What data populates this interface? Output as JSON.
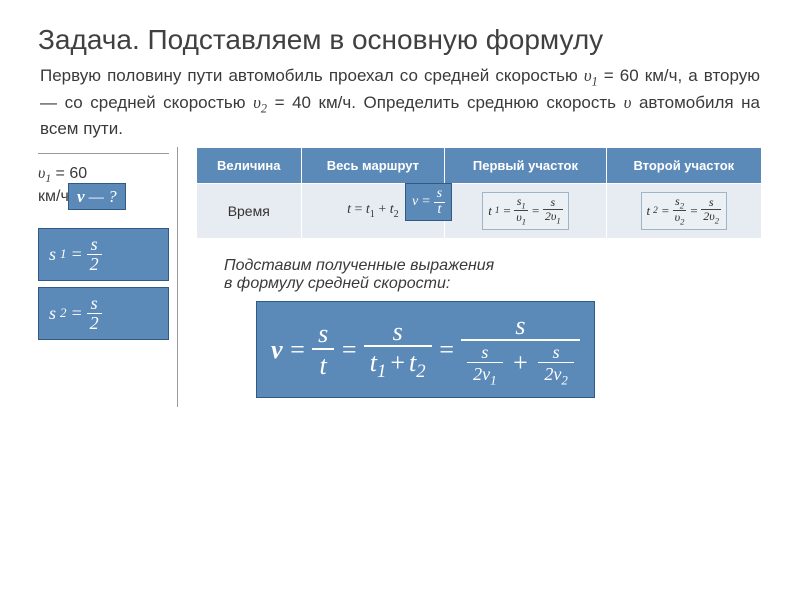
{
  "title": "Задача. Подставляем в основную формулу",
  "problem_html": "Первую половину пути автомобиль проехал со средней скоростью υ₁ = 60 км/ч, а вторую — со средней скоростью υ₂ = 40 км/ч. Определить среднюю скорость υ автомобиля на всем пути.",
  "given": {
    "v1": "υ₁ = 60 км/ч",
    "s1_eq": {
      "lhs": "s₁",
      "rhs_num": "s",
      "rhs_den": "2"
    },
    "s2_eq": {
      "lhs": "s₂",
      "rhs_num": "s",
      "rhs_den": "2"
    }
  },
  "find": "v — ?",
  "formula_small": {
    "lhs": "v",
    "num": "s",
    "den": "t"
  },
  "table": {
    "headers": [
      "Величина",
      "Весь маршрут",
      "Первый участок",
      "Второй участок"
    ],
    "row_label": "Время",
    "whole_route": "t = t₁ + t₂",
    "t1": {
      "lhs": "t₁",
      "f1_num": "s₁",
      "f1_den": "υ₁",
      "f2_num": "s",
      "f2_den": "2υ₁"
    },
    "t2": {
      "lhs": "t₂",
      "f1_num": "s₂",
      "f1_den": "υ₂",
      "f2_num": "s",
      "f2_den": "2υ₂"
    }
  },
  "substitute_note": "Подставим полученные выражения в формулу средней скорости:",
  "big_formula": {
    "lhs": "v",
    "step1": {
      "num": "s",
      "den": "t"
    },
    "step2": {
      "num": "s",
      "den": "t₁ + t₂"
    },
    "step3": {
      "num": "s",
      "den_left": {
        "num": "s",
        "den": "2v₁"
      },
      "den_right": {
        "num": "s",
        "den": "2v₂"
      }
    }
  },
  "colors": {
    "accent": "#5b8ab8",
    "accent_border": "#2e5a85",
    "row_bg": "#e7ecf2",
    "text": "#3a3a3a"
  }
}
